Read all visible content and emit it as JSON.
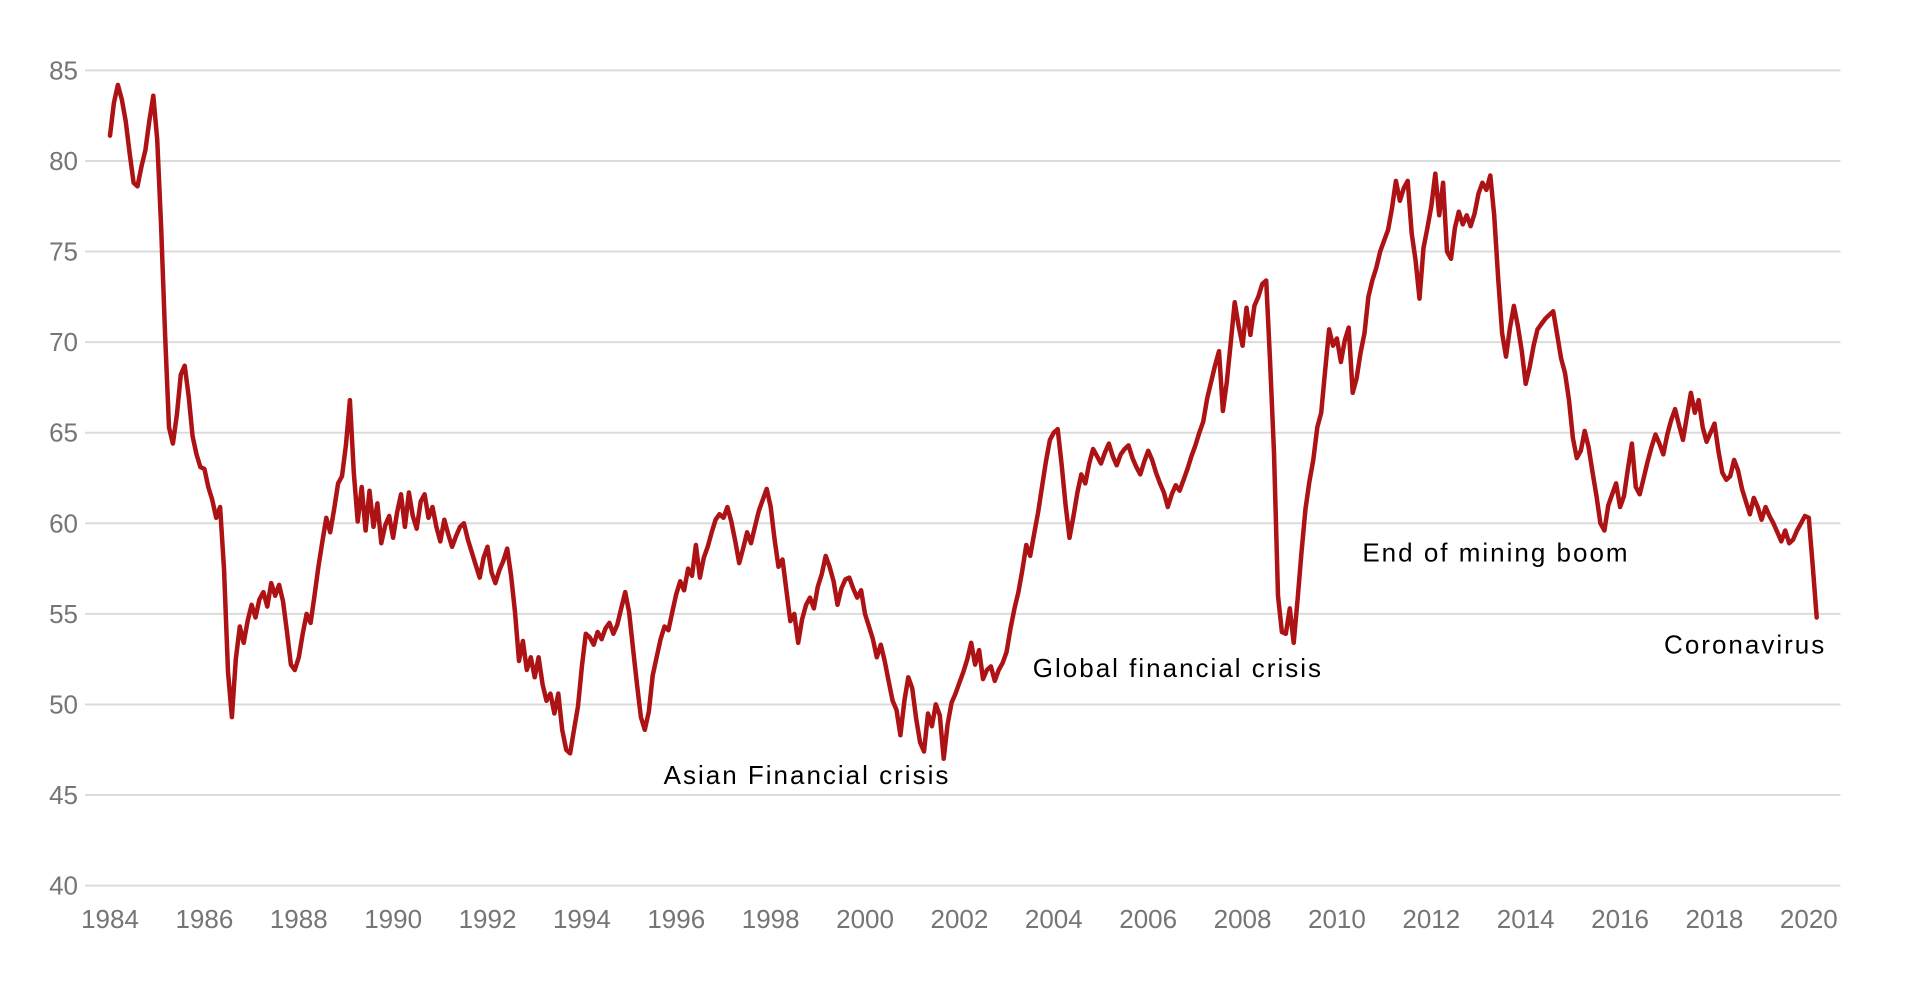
{
  "chart_data": {
    "type": "line",
    "grid": "horizontal-only",
    "legend": "none",
    "x_start_year": 1984,
    "points_per_year": 12,
    "x_ticks": [
      1984,
      1986,
      1988,
      1990,
      1992,
      1994,
      1996,
      1998,
      2000,
      2002,
      2004,
      2006,
      2008,
      2010,
      2012,
      2014,
      2016,
      2018,
      2020
    ],
    "y_ticks": [
      40,
      45,
      50,
      55,
      60,
      65,
      70,
      75,
      80,
      85
    ],
    "ylim": [
      40,
      85
    ],
    "xlim": [
      1983.47,
      2020.67
    ],
    "values": [
      81.4,
      83.2,
      84.2,
      83.4,
      82.2,
      80.4,
      78.8,
      78.6,
      79.7,
      80.6,
      82.2,
      83.6,
      81.2,
      76.4,
      70.4,
      65.3,
      64.4,
      66.0,
      68.2,
      68.7,
      67.0,
      64.8,
      63.8,
      63.1,
      63.0,
      62.0,
      61.3,
      60.3,
      60.9,
      57.5,
      51.8,
      49.3,
      52.5,
      54.3,
      53.4,
      54.6,
      55.5,
      54.8,
      55.8,
      56.2,
      55.4,
      56.7,
      56.0,
      56.6,
      55.7,
      54.0,
      52.2,
      51.9,
      52.6,
      53.9,
      55.0,
      54.5,
      56.0,
      57.6,
      59.0,
      60.3,
      59.5,
      60.8,
      62.2,
      62.6,
      64.3,
      66.8,
      62.8,
      60.1,
      62.0,
      59.6,
      61.8,
      59.8,
      61.1,
      58.9,
      59.9,
      60.4,
      59.2,
      60.6,
      61.6,
      59.8,
      61.7,
      60.4,
      59.7,
      61.2,
      61.6,
      60.3,
      60.9,
      59.8,
      59.0,
      60.2,
      59.4,
      58.7,
      59.3,
      59.8,
      60.0,
      59.1,
      58.4,
      57.7,
      57.0,
      58.1,
      58.7,
      57.3,
      56.7,
      57.4,
      57.9,
      58.6,
      57.1,
      55.1,
      52.4,
      53.5,
      51.9,
      52.6,
      51.5,
      52.6,
      51.1,
      50.2,
      50.6,
      49.5,
      50.6,
      48.6,
      47.5,
      47.3,
      48.6,
      49.9,
      52.1,
      53.9,
      53.7,
      53.3,
      54.0,
      53.6,
      54.2,
      54.5,
      53.9,
      54.4,
      55.3,
      56.2,
      55.1,
      53.1,
      51.1,
      49.3,
      48.6,
      49.6,
      51.6,
      52.6,
      53.6,
      54.3,
      54.1,
      55.1,
      56.1,
      56.8,
      56.3,
      57.5,
      57.1,
      58.8,
      57.0,
      58.1,
      58.7,
      59.5,
      60.2,
      60.5,
      60.3,
      60.9,
      60.1,
      59.0,
      57.8,
      58.6,
      59.5,
      58.9,
      59.8,
      60.7,
      61.3,
      61.9,
      60.9,
      59.1,
      57.6,
      58.0,
      56.3,
      54.6,
      55.0,
      53.4,
      54.7,
      55.5,
      55.9,
      55.3,
      56.5,
      57.2,
      58.2,
      57.6,
      56.8,
      55.5,
      56.4,
      56.9,
      57.0,
      56.4,
      55.9,
      56.3,
      55.0,
      54.3,
      53.6,
      52.6,
      53.3,
      52.4,
      51.3,
      50.2,
      49.7,
      48.3,
      50.2,
      51.5,
      50.9,
      49.2,
      47.9,
      47.4,
      49.5,
      48.8,
      50.0,
      49.4,
      47.0,
      48.9,
      50.1,
      50.6,
      51.2,
      51.8,
      52.5,
      53.4,
      52.2,
      53.0,
      51.4,
      51.9,
      52.1,
      51.3,
      51.9,
      52.3,
      52.9,
      54.2,
      55.3,
      56.2,
      57.4,
      58.8,
      58.2,
      59.4,
      60.6,
      62.0,
      63.4,
      64.6,
      65.0,
      65.2,
      63.2,
      61.0,
      59.2,
      60.4,
      61.7,
      62.7,
      62.2,
      63.3,
      64.1,
      63.7,
      63.3,
      63.9,
      64.4,
      63.7,
      63.2,
      63.8,
      64.1,
      64.3,
      63.6,
      63.1,
      62.7,
      63.4,
      64.0,
      63.5,
      62.8,
      62.2,
      61.7,
      60.9,
      61.6,
      62.1,
      61.8,
      62.4,
      63.0,
      63.7,
      64.3,
      65.0,
      65.6,
      66.9,
      67.8,
      68.7,
      69.5,
      66.2,
      67.8,
      70.0,
      72.2,
      70.9,
      69.8,
      71.9,
      70.4,
      72.0,
      72.5,
      73.2,
      73.4,
      68.9,
      63.9,
      56.0,
      54.0,
      53.9,
      55.3,
      53.4,
      55.8,
      58.4,
      60.8,
      62.3,
      63.5,
      65.3,
      66.1,
      68.4,
      70.7,
      69.8,
      70.2,
      68.9,
      70.1,
      70.8,
      67.2,
      68.0,
      69.4,
      70.5,
      72.5,
      73.4,
      74.1,
      75.0,
      75.6,
      76.2,
      77.4,
      78.9,
      77.8,
      78.5,
      78.9,
      76.0,
      74.5,
      72.4,
      75.2,
      76.3,
      77.5,
      79.3,
      77.0,
      78.8,
      75.0,
      74.6,
      76.3,
      77.2,
      76.5,
      77.0,
      76.4,
      77.1,
      78.2,
      78.8,
      78.4,
      79.2,
      77.0,
      73.5,
      70.5,
      69.2,
      70.8,
      72.0,
      70.9,
      69.5,
      67.7,
      68.6,
      69.8,
      70.7,
      71.0,
      71.3,
      71.5,
      71.7,
      70.4,
      69.1,
      68.3,
      66.8,
      64.7,
      63.6,
      64.0,
      65.1,
      64.2,
      62.8,
      61.5,
      60.0,
      59.6,
      61.0,
      61.6,
      62.2,
      60.9,
      61.5,
      63.0,
      64.4,
      62.0,
      61.6,
      62.5,
      63.4,
      64.2,
      64.9,
      64.4,
      63.8,
      64.9,
      65.7,
      66.3,
      65.4,
      64.6,
      65.9,
      67.2,
      66.1,
      66.8,
      65.3,
      64.5,
      65.0,
      65.5,
      64.0,
      62.8,
      62.4,
      62.6,
      63.5,
      62.9,
      61.9,
      61.2,
      60.5,
      61.4,
      60.9,
      60.2,
      60.9,
      60.4,
      60.0,
      59.5,
      59.0,
      59.6,
      58.9,
      59.1,
      59.6,
      60.0,
      60.4,
      60.3,
      57.6,
      54.8
    ],
    "annotations": [
      {
        "text": "Asian Financial crisis",
        "x": 1998.77,
        "y": 46.1
      },
      {
        "text": "Global financial crisis",
        "x": 2006.63,
        "y": 52.0
      },
      {
        "text": "End of mining boom",
        "x": 2013.37,
        "y": 58.4
      },
      {
        "text": "Coronavirus",
        "x": 2018.65,
        "y": 53.3
      }
    ],
    "colors": {
      "line": "#AD1214",
      "grid": "#DBDBDB",
      "tick_label": "#757575",
      "annotation": "#000000",
      "background": "#FFFFFF"
    }
  }
}
